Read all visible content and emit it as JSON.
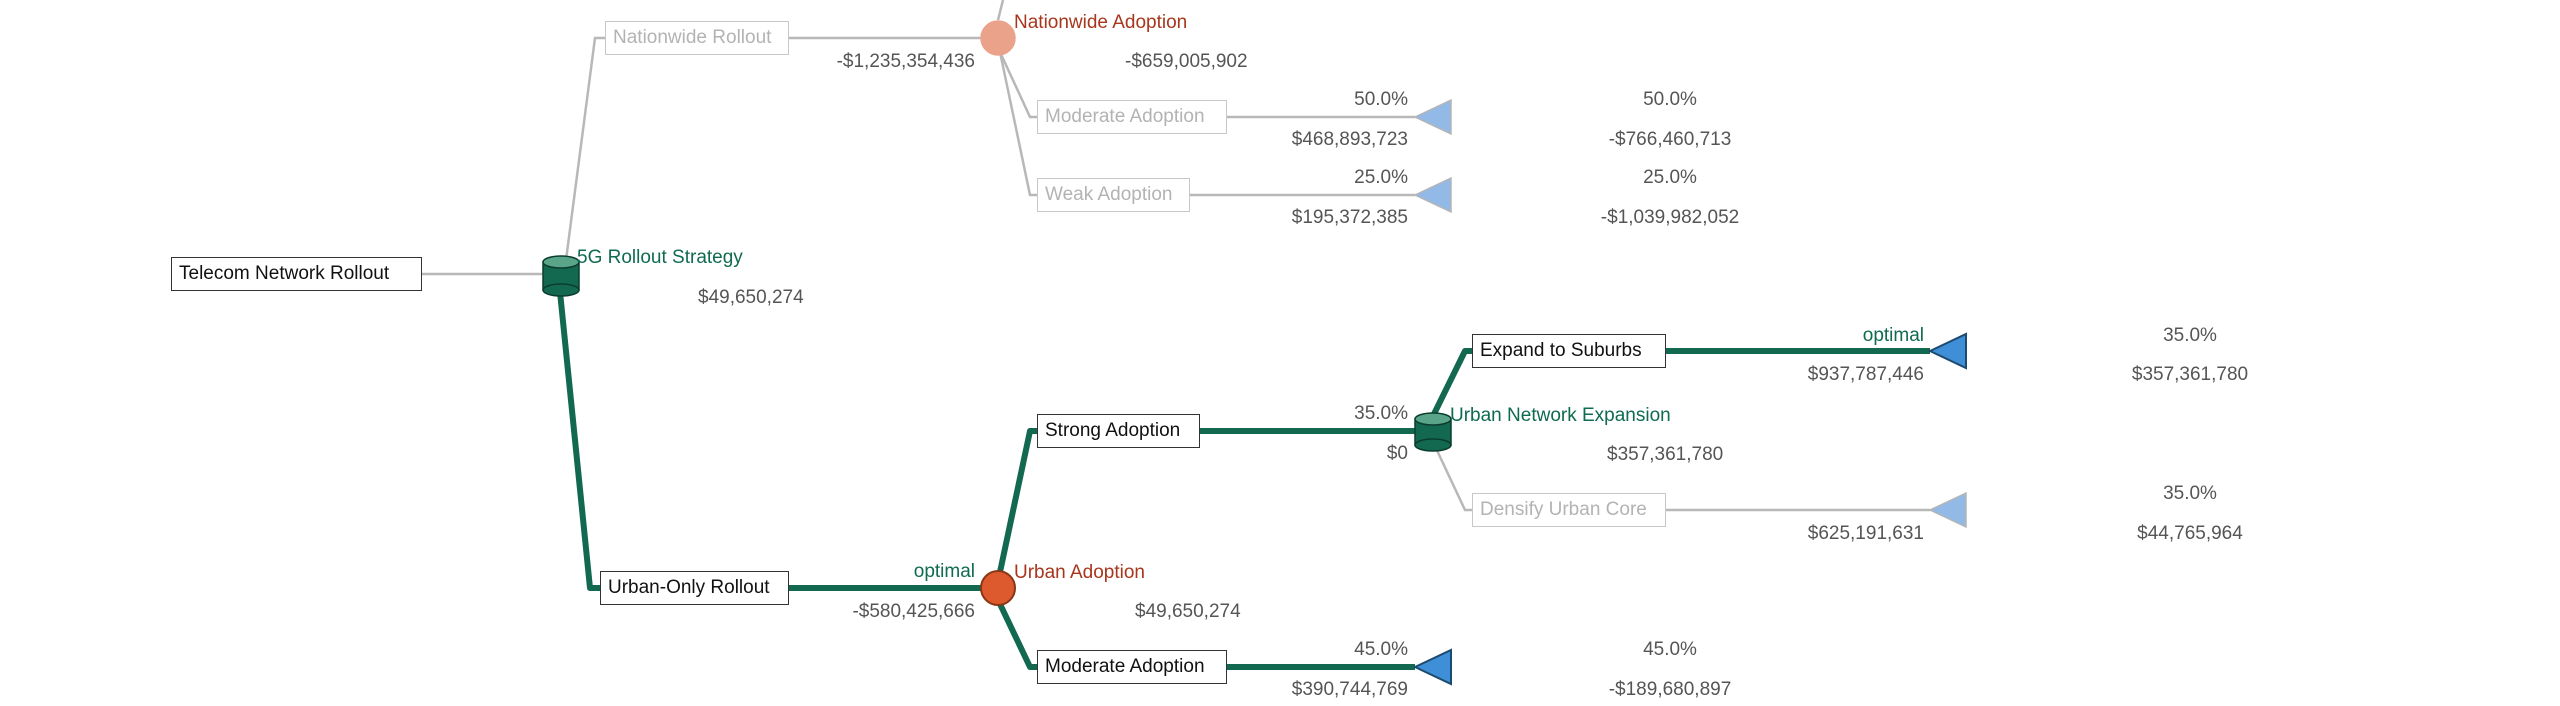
{
  "colors": {
    "optimal_path": "#13694f",
    "inactive_path": "#b8b8b8",
    "decision_node": "#13694f",
    "chance_node_active": "#dd5a2f",
    "chance_node_inactive": "#eba28a",
    "terminal_active": "#3f8fd8",
    "terminal_inactive": "#93b9e6"
  },
  "tree": {
    "root": {
      "label": "Telecom Network Rollout"
    },
    "decision": {
      "label": "5G Rollout Strategy",
      "value": "$49,650,274"
    },
    "nationwide": {
      "label": "Nationwide Rollout",
      "cost": "-$1,235,354,436",
      "chance_label": "Nationwide Adoption",
      "chance_value": "-$659,005,902",
      "outcomes": [
        {
          "label": "Moderate Adoption",
          "prob": "50.0%",
          "payoff": "$468,893,723",
          "end_prob": "50.0%",
          "end_value": "-$766,460,713"
        },
        {
          "label": "Weak Adoption",
          "prob": "25.0%",
          "payoff": "$195,372,385",
          "end_prob": "25.0%",
          "end_value": "-$1,039,982,052"
        }
      ]
    },
    "urban": {
      "label": "Urban-Only Rollout",
      "optimal": "optimal",
      "cost": "-$580,425,666",
      "chance_label": "Urban Adoption",
      "chance_value": "$49,650,274",
      "strong": {
        "label": "Strong Adoption",
        "prob": "35.0%",
        "payoff": "$0",
        "decision_label": "Urban Network Expansion",
        "decision_value": "$357,361,780",
        "expand": {
          "label": "Expand to Suburbs",
          "optimal": "optimal",
          "payoff": "$937,787,446",
          "end_prob": "35.0%",
          "end_value": "$357,361,780"
        },
        "densify": {
          "label": "Densify Urban Core",
          "payoff": "$625,191,631",
          "end_prob": "35.0%",
          "end_value": "$44,765,964"
        }
      },
      "moderate": {
        "label": "Moderate Adoption",
        "prob": "45.0%",
        "payoff": "$390,744,769",
        "end_prob": "45.0%",
        "end_value": "-$189,680,897"
      }
    }
  }
}
